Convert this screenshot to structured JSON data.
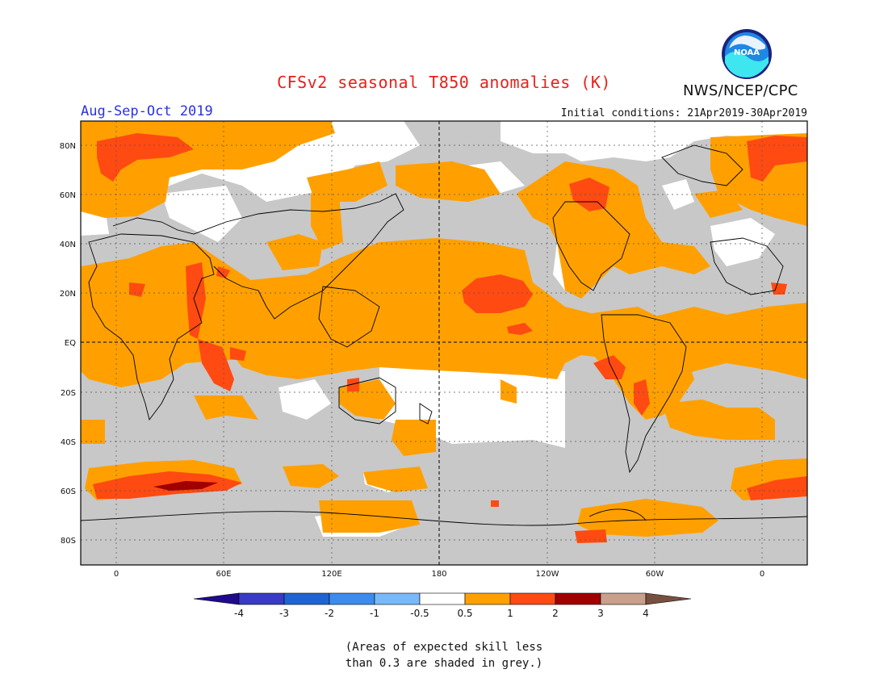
{
  "header": {
    "title": "CFSv2 seasonal T850 anomalies (K)",
    "agency": "NWS/NCEP/CPC",
    "season": "Aug-Sep-Oct 2019",
    "initial_conditions": "Initial conditions: 21Apr2019-30Apr2019",
    "logo_text": "NOAA"
  },
  "map": {
    "lat_labels": [
      "80N",
      "60N",
      "40N",
      "20N",
      "EQ",
      "20S",
      "40S",
      "60S",
      "80S"
    ],
    "lon_labels": [
      "0",
      "60E",
      "120E",
      "180",
      "120W",
      "60W",
      "0"
    ],
    "colors": {
      "skill_grey": "#c8c8c8",
      "neutral": "#ffffff",
      "warm_0_5_1": "#ffa000",
      "warm_1_2": "#ff4a12",
      "warm_2_3": "#a00000",
      "land_outline": "#000000"
    }
  },
  "colorbar": {
    "tick_labels": [
      "-4",
      "-3",
      "-2",
      "-1",
      "-0.5",
      "0.5",
      "1",
      "2",
      "3",
      "4"
    ],
    "colors": [
      "#1f0a8c",
      "#3a3ac8",
      "#1e64d2",
      "#3c8cf0",
      "#78b9fa",
      "#ffffff",
      "#ffa000",
      "#ff4a12",
      "#a00000",
      "#c8a08c",
      "#785040"
    ]
  },
  "note": {
    "line1": "(Areas of expected skill less",
    "line2": "than 0.3 are shaded in grey.)"
  }
}
